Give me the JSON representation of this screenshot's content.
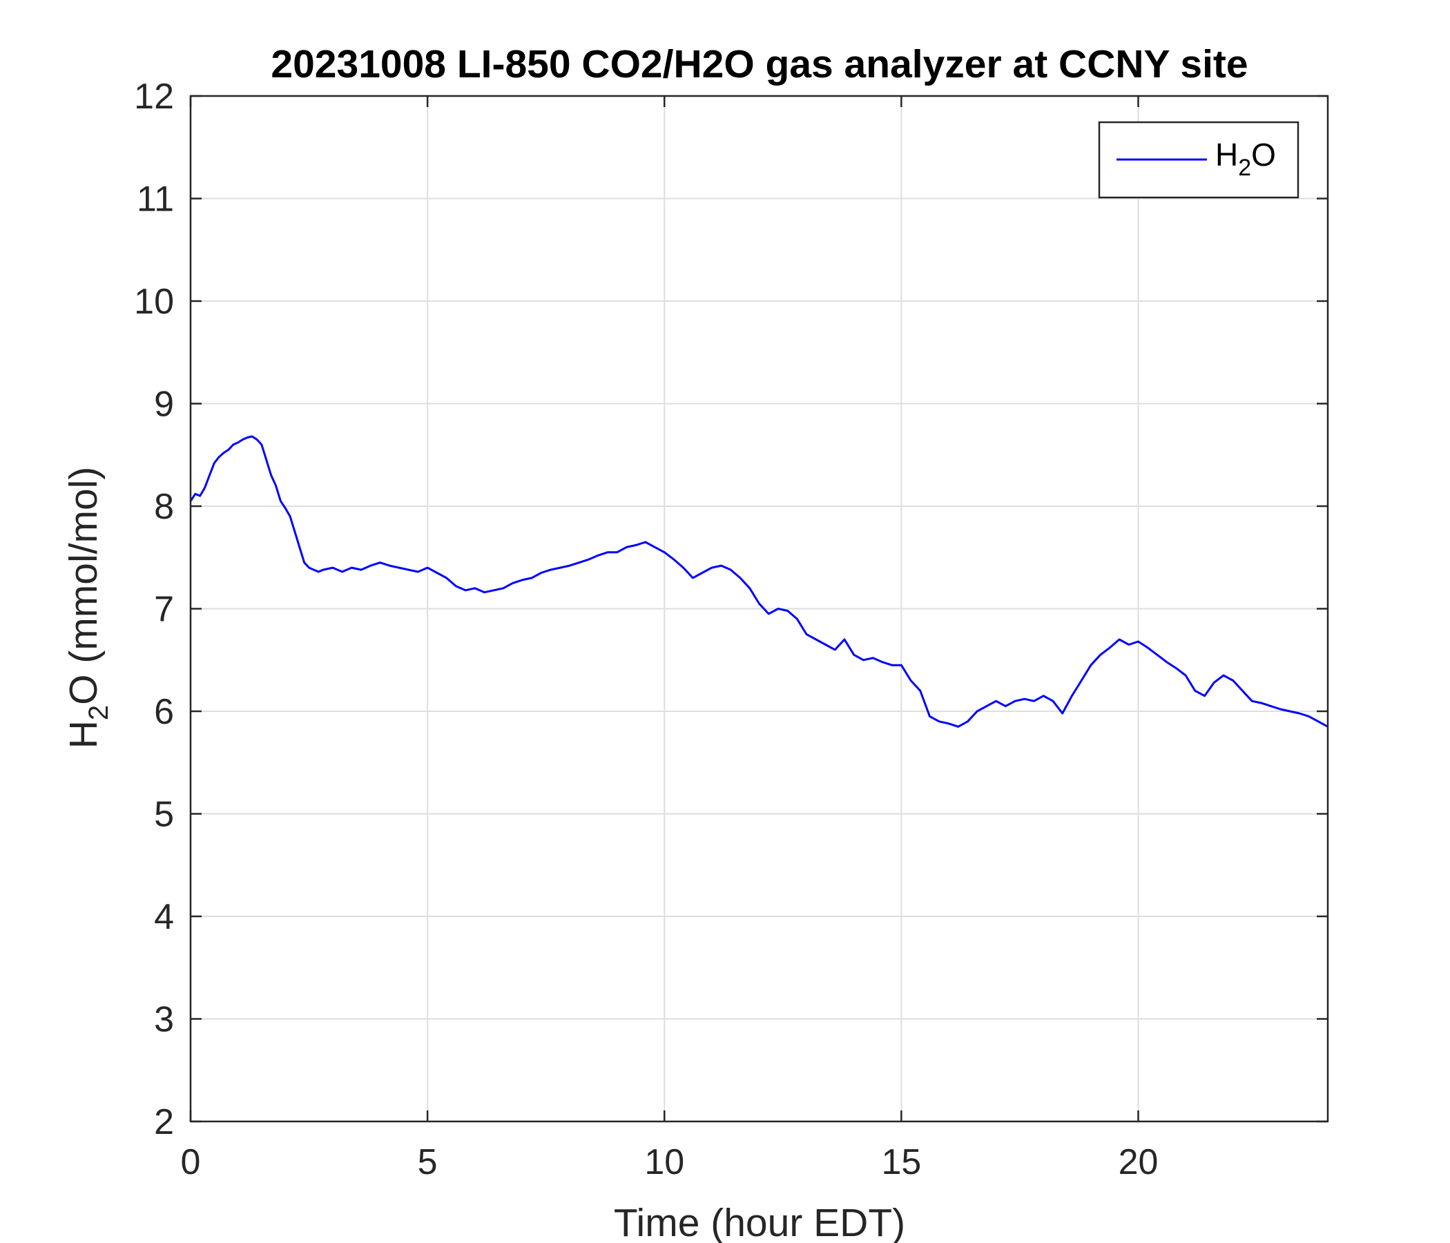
{
  "chart_data": {
    "type": "line",
    "title": "20231008 LI-850 CO2/H2O gas analyzer at CCNY site",
    "xlabel": "Time (hour EDT)",
    "ylabel": {
      "main": "H",
      "sub": "2",
      "rest": "O (mmol/mol)"
    },
    "xlim": [
      0,
      24
    ],
    "ylim": [
      2,
      12
    ],
    "xticks": [
      0,
      5,
      10,
      15,
      20
    ],
    "yticks": [
      2,
      3,
      4,
      5,
      6,
      7,
      8,
      9,
      10,
      11,
      12
    ],
    "grid": true,
    "legend": {
      "position": "top-right",
      "entries": [
        {
          "main": "H",
          "sub": "2",
          "rest": "O"
        }
      ]
    },
    "colors": {
      "series": "#0000ff",
      "grid": "#dedede",
      "axes": "#262626"
    },
    "series": [
      {
        "name": "H2O",
        "x": [
          0,
          0.1,
          0.2,
          0.3,
          0.4,
          0.5,
          0.6,
          0.7,
          0.8,
          0.9,
          1.0,
          1.1,
          1.2,
          1.3,
          1.4,
          1.5,
          1.6,
          1.7,
          1.8,
          1.9,
          2.0,
          2.1,
          2.2,
          2.3,
          2.4,
          2.5,
          2.6,
          2.7,
          2.8,
          3.0,
          3.2,
          3.4,
          3.6,
          3.8,
          4.0,
          4.2,
          4.4,
          4.6,
          4.8,
          5.0,
          5.2,
          5.4,
          5.6,
          5.8,
          6.0,
          6.2,
          6.4,
          6.6,
          6.8,
          7.0,
          7.2,
          7.4,
          7.6,
          7.8,
          8.0,
          8.2,
          8.4,
          8.6,
          8.8,
          9.0,
          9.2,
          9.4,
          9.6,
          9.8,
          10.0,
          10.2,
          10.4,
          10.6,
          10.8,
          11.0,
          11.2,
          11.4,
          11.6,
          11.8,
          12.0,
          12.2,
          12.4,
          12.6,
          12.8,
          13.0,
          13.2,
          13.4,
          13.6,
          13.8,
          14.0,
          14.2,
          14.4,
          14.6,
          14.8,
          15.0,
          15.2,
          15.4,
          15.6,
          15.8,
          16.0,
          16.2,
          16.4,
          16.6,
          16.8,
          17.0,
          17.2,
          17.4,
          17.6,
          17.8,
          18.0,
          18.2,
          18.4,
          18.6,
          18.8,
          19.0,
          19.2,
          19.4,
          19.6,
          19.8,
          20.0,
          20.2,
          20.4,
          20.6,
          20.8,
          21.0,
          21.2,
          21.4,
          21.6,
          21.8,
          22.0,
          22.2,
          22.4,
          22.6,
          22.8,
          23.0,
          23.2,
          23.4,
          23.6,
          23.8,
          24.0
        ],
        "y": [
          8.05,
          8.12,
          8.1,
          8.18,
          8.3,
          8.42,
          8.48,
          8.52,
          8.55,
          8.6,
          8.62,
          8.65,
          8.67,
          8.68,
          8.65,
          8.6,
          8.45,
          8.3,
          8.2,
          8.05,
          7.98,
          7.9,
          7.75,
          7.6,
          7.45,
          7.4,
          7.38,
          7.36,
          7.38,
          7.4,
          7.36,
          7.4,
          7.38,
          7.42,
          7.45,
          7.42,
          7.4,
          7.38,
          7.36,
          7.4,
          7.35,
          7.3,
          7.22,
          7.18,
          7.2,
          7.16,
          7.18,
          7.2,
          7.25,
          7.28,
          7.3,
          7.35,
          7.38,
          7.4,
          7.42,
          7.45,
          7.48,
          7.52,
          7.55,
          7.55,
          7.6,
          7.62,
          7.65,
          7.6,
          7.55,
          7.48,
          7.4,
          7.3,
          7.35,
          7.4,
          7.42,
          7.38,
          7.3,
          7.2,
          7.05,
          6.95,
          7.0,
          6.98,
          6.9,
          6.75,
          6.7,
          6.65,
          6.6,
          6.7,
          6.55,
          6.5,
          6.52,
          6.48,
          6.45,
          6.45,
          6.3,
          6.2,
          5.95,
          5.9,
          5.88,
          5.85,
          5.9,
          6.0,
          6.05,
          6.1,
          6.05,
          6.1,
          6.12,
          6.1,
          6.15,
          6.1,
          5.98,
          6.15,
          6.3,
          6.45,
          6.55,
          6.62,
          6.7,
          6.65,
          6.68,
          6.62,
          6.55,
          6.48,
          6.42,
          6.35,
          6.2,
          6.15,
          6.28,
          6.35,
          6.3,
          6.2,
          6.1,
          6.08,
          6.05,
          6.02,
          6.0,
          5.98,
          5.95,
          5.9,
          5.85
        ]
      }
    ]
  }
}
